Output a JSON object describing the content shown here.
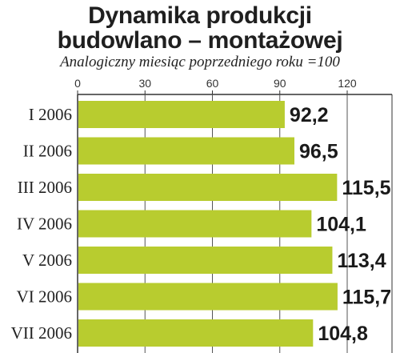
{
  "chart_data": {
    "type": "bar",
    "orientation": "horizontal",
    "title_line1": "Dynamika produkcji",
    "title_line2": "budowlano – montażowej",
    "subtitle": "Analogiczny miesiąc poprzedniego roku =100",
    "categories": [
      "I 2006",
      "II 2006",
      "III 2006",
      "IV 2006",
      "V 2006",
      "VI 2006",
      "VII 2006"
    ],
    "values": [
      92.2,
      96.5,
      115.5,
      104.1,
      113.4,
      115.7,
      104.8
    ],
    "value_labels": [
      "92,2",
      "96,5",
      "115,5",
      "104,1",
      "113,4",
      "115,7",
      "104,8"
    ],
    "x_ticks": [
      0,
      30,
      60,
      90,
      120
    ],
    "xlim": [
      0,
      120
    ],
    "grid": true,
    "bar_color": "#b8cc2f"
  }
}
